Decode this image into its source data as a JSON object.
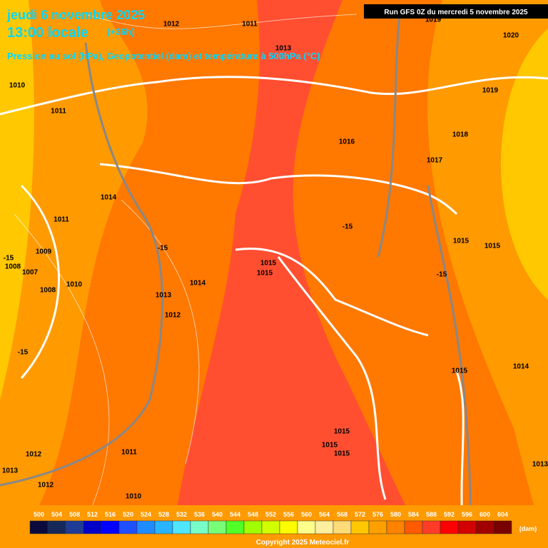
{
  "header": {
    "date": "jeudi 6 novembre 2025",
    "time": "13:00 locale",
    "lead": "(+36h)",
    "subtitle": "Pression au sol (hPa), Geopotentiel (dam) et température à 500hPa (°C)",
    "run": "Run GFS 0Z du mercredi 5 novembre 2025"
  },
  "map_labels": [
    1012,
    1011,
    1013,
    1019,
    1020,
    1010,
    1011,
    1019,
    1018,
    1016,
    1017,
    1014,
    1011,
    -15,
    -15,
    1015,
    1015,
    1009,
    1015,
    1015,
    -15,
    1008,
    1007,
    1010,
    1014,
    1008,
    -15,
    1013,
    1012,
    1014,
    -15,
    1015,
    1015,
    1015,
    1015,
    1012,
    1011,
    1013,
    1012,
    1010,
    1013
  ],
  "legend": {
    "labels": [
      500,
      504,
      508,
      512,
      516,
      520,
      524,
      528,
      532,
      536,
      540,
      544,
      548,
      552,
      556,
      560,
      564,
      568,
      572,
      576,
      580,
      584,
      588,
      592,
      596,
      600,
      604
    ],
    "colors": [
      "#0a0a3c",
      "#14285a",
      "#1e3c96",
      "#0000c8",
      "#0000ff",
      "#1e50ff",
      "#1e8cff",
      "#28b4ff",
      "#50e6ff",
      "#78ffc8",
      "#78ff78",
      "#50ff28",
      "#a0ff00",
      "#d2ff00",
      "#ffff00",
      "#ffff8c",
      "#fff0a0",
      "#ffdc78",
      "#ffc800",
      "#ffa000",
      "#ff8200",
      "#ff5a00",
      "#ff3c28",
      "#ff0000",
      "#d20000",
      "#a00000",
      "#780000"
    ],
    "unit": "(dam)"
  },
  "copyright": "Copyright 2025 Meteociel.fr"
}
